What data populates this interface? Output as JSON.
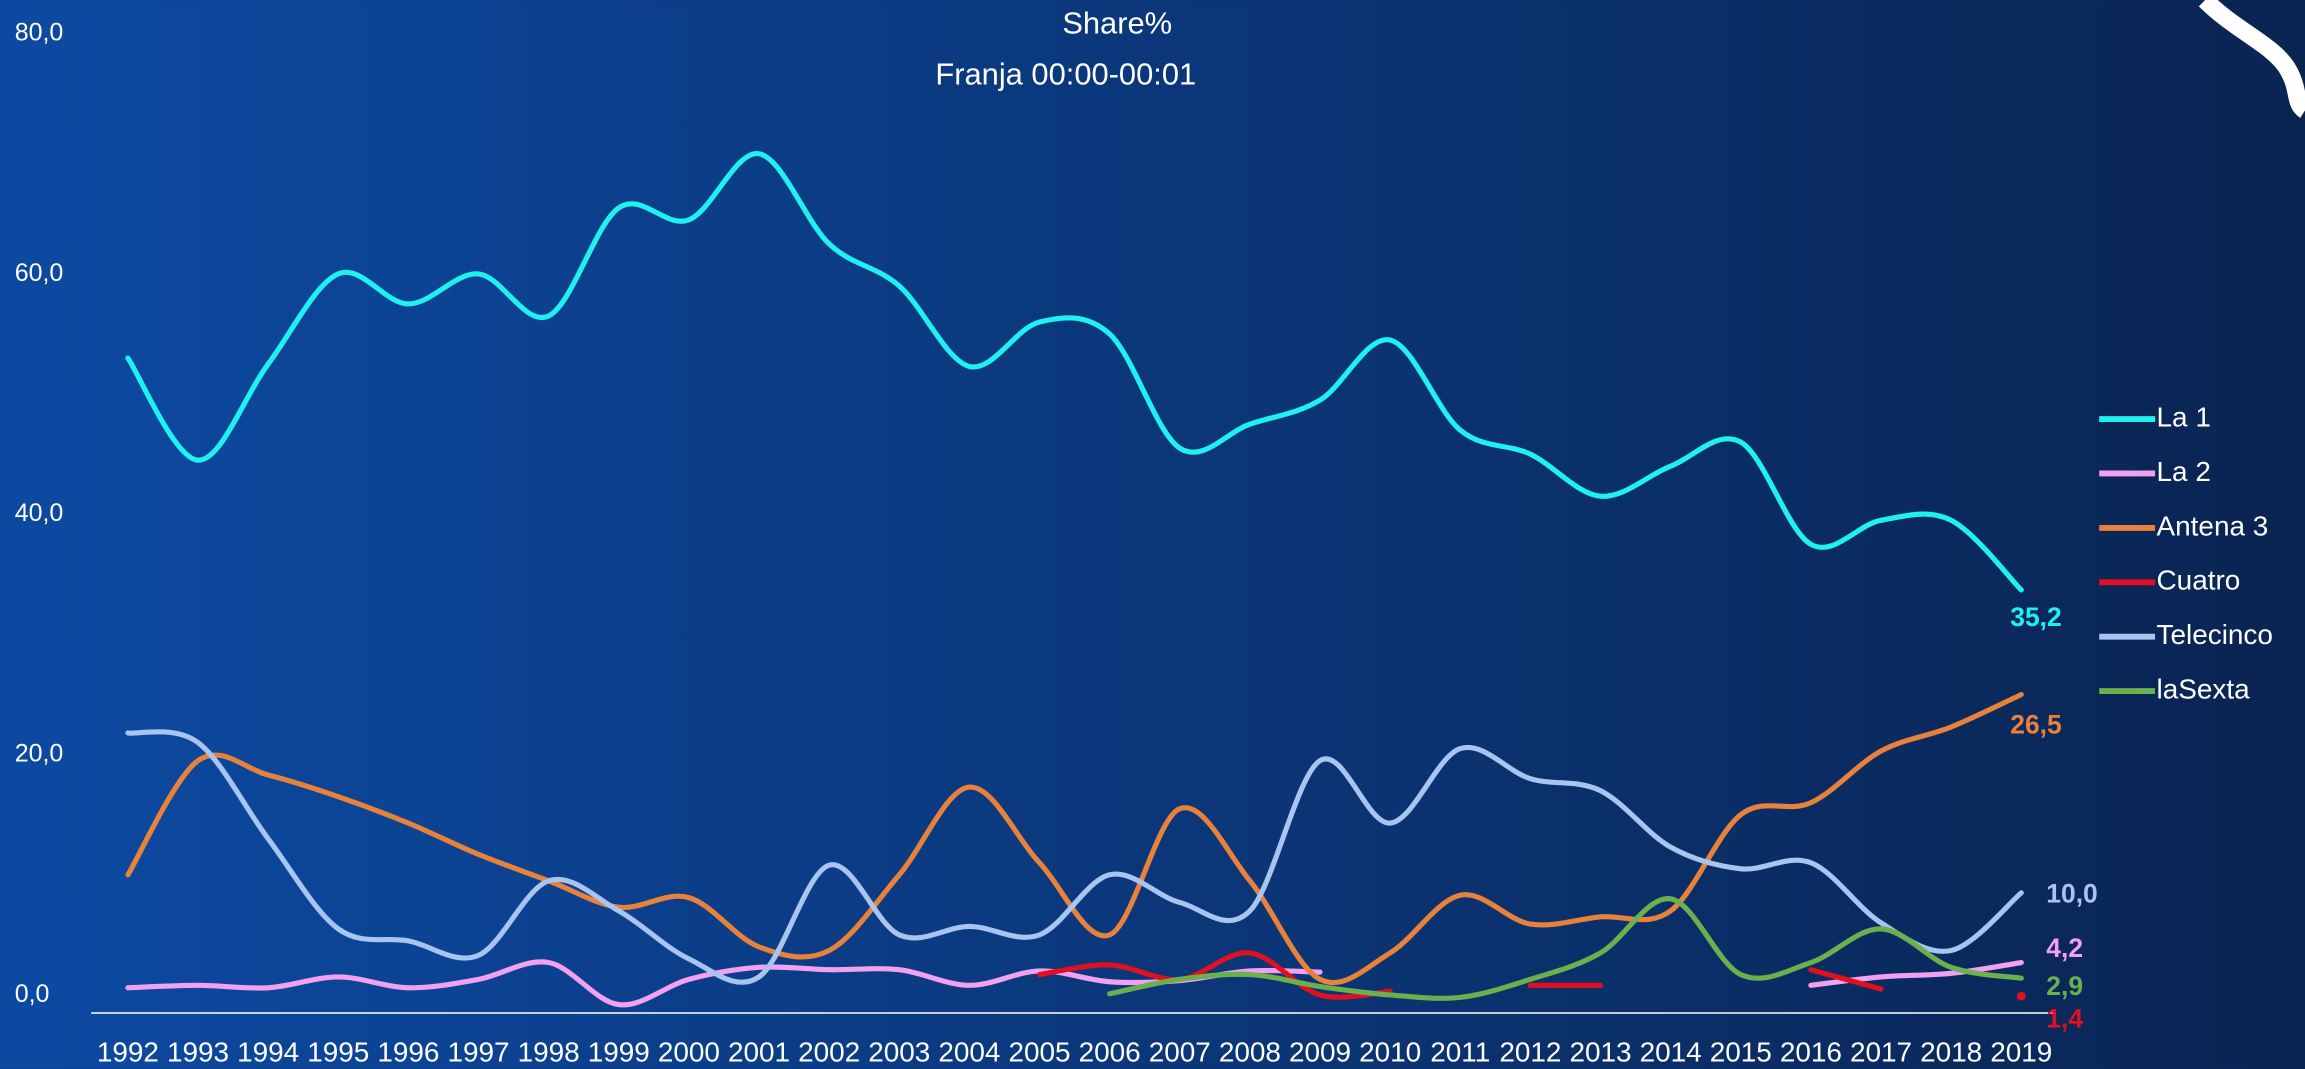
{
  "chart_data": {
    "type": "line",
    "title": "Share%",
    "subtitle": "Franja 00:00-00:01",
    "categories": [
      "1992",
      "1993",
      "1994",
      "1995",
      "1996",
      "1997",
      "1998",
      "1999",
      "2000",
      "2001",
      "2002",
      "2003",
      "2004",
      "2005",
      "2006",
      "2007",
      "2008",
      "2009",
      "2010",
      "2011",
      "2012",
      "2013",
      "2014",
      "2015",
      "2016",
      "2017",
      "2018",
      "2019"
    ],
    "ylim": [
      0,
      80
    ],
    "yticks": [
      {
        "value": 0,
        "label": "0,0"
      },
      {
        "value": 20,
        "label": "20,0"
      },
      {
        "value": 40,
        "label": "40,0"
      },
      {
        "value": 60,
        "label": "60,0"
      },
      {
        "value": 80,
        "label": "80,0"
      }
    ],
    "legend": "right",
    "series": [
      {
        "name": "La 1",
        "color": "#1ff0f0",
        "values": [
          54.5,
          46,
          54,
          61.5,
          59,
          61.5,
          58,
          67,
          66,
          71.5,
          64,
          60.5,
          53.8,
          57.5,
          56.5,
          47,
          49,
          51,
          56,
          48.5,
          46.5,
          43,
          45.5,
          47.5,
          39,
          41,
          41,
          35.2
        ],
        "value_labels": [
          null,
          null,
          null,
          null,
          null,
          null,
          null,
          null,
          null,
          null,
          null,
          null,
          null,
          null,
          null,
          null,
          null,
          null,
          null,
          null,
          null,
          null,
          null,
          null,
          null,
          null,
          null,
          "35,2"
        ]
      },
      {
        "name": "La 2",
        "color": "#f2a0f0",
        "values": [
          2.1,
          2.3,
          2.1,
          3,
          2.1,
          2.8,
          4.2,
          0.7,
          2.8,
          3.8,
          3.6,
          3.6,
          2.3,
          3.5,
          2.6,
          2.7,
          3.5,
          3.4,
          null,
          null,
          null,
          null,
          null,
          null,
          2.3,
          3,
          3.3,
          4.2
        ],
        "value_labels": [
          null,
          null,
          null,
          null,
          null,
          null,
          null,
          null,
          null,
          null,
          null,
          null,
          null,
          null,
          null,
          null,
          null,
          null,
          null,
          null,
          null,
          null,
          null,
          null,
          null,
          null,
          null,
          "4,2"
        ]
      },
      {
        "name": "Antena 3",
        "color": "#e8823a",
        "values": [
          11.5,
          21,
          19.8,
          18,
          15.8,
          13.2,
          11,
          8.8,
          9.6,
          5.5,
          5.2,
          11.5,
          18.8,
          12.5,
          6.5,
          17,
          11,
          2.8,
          5,
          9.8,
          7.4,
          8,
          8.5,
          16.5,
          17.5,
          21.8,
          23.8,
          26.5
        ],
        "value_labels": [
          null,
          null,
          null,
          null,
          null,
          null,
          null,
          null,
          null,
          null,
          null,
          null,
          null,
          null,
          null,
          null,
          null,
          null,
          null,
          null,
          null,
          null,
          null,
          null,
          null,
          null,
          null,
          "26,5"
        ]
      },
      {
        "name": "Cuatro",
        "color": "#e01020",
        "values": [
          null,
          null,
          null,
          null,
          null,
          null,
          null,
          null,
          null,
          null,
          null,
          null,
          null,
          3.2,
          4,
          2.8,
          5,
          1.5,
          1.8,
          null,
          2.3,
          2.3,
          null,
          null,
          3.6,
          2,
          null,
          1.4
        ],
        "value_labels": [
          null,
          null,
          null,
          null,
          null,
          null,
          null,
          null,
          null,
          null,
          null,
          null,
          null,
          null,
          null,
          null,
          null,
          null,
          null,
          null,
          null,
          null,
          null,
          null,
          null,
          null,
          null,
          "1,4"
        ]
      },
      {
        "name": "Telecinco",
        "color": "#a8c4f0",
        "values": [
          23.3,
          22.5,
          14.5,
          7,
          6,
          4.8,
          11,
          8.5,
          4.5,
          3,
          12.3,
          6.5,
          7.2,
          6.5,
          11.5,
          9.2,
          8.5,
          21,
          15.8,
          22,
          19.5,
          18.5,
          13.8,
          12,
          12.5,
          7.5,
          5.2,
          10
        ],
        "value_labels": [
          null,
          null,
          null,
          null,
          null,
          null,
          null,
          null,
          null,
          null,
          null,
          null,
          null,
          null,
          null,
          null,
          null,
          null,
          null,
          null,
          null,
          null,
          null,
          null,
          null,
          null,
          null,
          "10,0"
        ]
      },
      {
        "name": "laSexta",
        "color": "#6ab04c",
        "values": [
          null,
          null,
          null,
          null,
          null,
          null,
          null,
          null,
          null,
          null,
          null,
          null,
          null,
          null,
          1.6,
          2.8,
          3.2,
          2.2,
          1.5,
          1.3,
          2.8,
          5,
          9.5,
          3.2,
          4.2,
          7,
          3.8,
          2.9
        ],
        "value_labels": [
          null,
          null,
          null,
          null,
          null,
          null,
          null,
          null,
          null,
          null,
          null,
          null,
          null,
          null,
          null,
          null,
          null,
          null,
          null,
          null,
          null,
          null,
          null,
          null,
          null,
          null,
          null,
          "2,9"
        ]
      }
    ]
  }
}
